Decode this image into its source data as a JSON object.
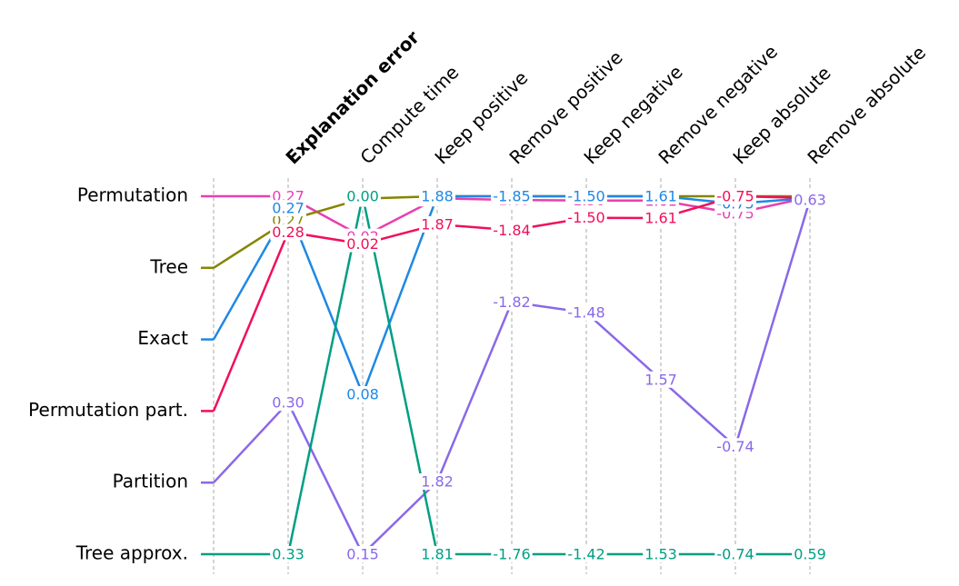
{
  "chart_data": {
    "type": "parallel",
    "metrics": [
      "Explanation error",
      "Compute time",
      "Keep positive",
      "Remove positive",
      "Keep negative",
      "Remove negative",
      "Keep absolute",
      "Remove absolute"
    ],
    "highlighted_metric": 0,
    "lower_is_better": [
      true,
      true,
      false,
      true,
      true,
      false,
      true,
      false
    ],
    "grid": true,
    "series": [
      {
        "name": "Permutation",
        "color": "#e83fb0",
        "values": [
          0.27,
          0.017,
          1.8796,
          -1.852,
          -1.502,
          1.611,
          -0.7497,
          0.6303
        ],
        "value_labels": [
          "0.27",
          "0.02",
          "1.88",
          "-1.85",
          "-1.50",
          "1.61",
          "-0.75",
          "0.63"
        ]
      },
      {
        "name": "Tree",
        "color": "#858500",
        "values": [
          0.274,
          0.001,
          1.88,
          -1.853,
          -1.503,
          1.612,
          -0.7504,
          0.6304
        ],
        "value_labels": [
          "0.27",
          "0.00",
          "1.88",
          "-1.85",
          "-1.50",
          "1.61",
          "-0.75",
          "0.63"
        ]
      },
      {
        "name": "Exact",
        "color": "#1e88e5",
        "values": [
          0.272,
          0.083,
          1.88,
          -1.853,
          -1.503,
          1.612,
          -0.7501,
          0.6302
        ],
        "value_labels": [
          "0.27",
          "0.08",
          "1.88",
          "-1.85",
          "-1.50",
          "1.61",
          "-0.75",
          "0.63"
        ]
      },
      {
        "name": "Permutation part.",
        "color": "#f0105a",
        "values": [
          0.276,
          0.02,
          1.8745,
          -1.844,
          -1.498,
          1.607,
          -0.7504,
          0.6302
        ],
        "value_labels": [
          "0.28",
          "0.02",
          "1.87",
          "-1.84",
          "-1.50",
          "1.61",
          "-0.75",
          "0.63"
        ]
      },
      {
        "name": "Partition",
        "color": "#8a68e8",
        "values": [
          0.3046,
          0.15,
          1.8242,
          -1.8249,
          -1.476,
          1.57,
          -0.7402,
          0.63
        ],
        "value_labels": [
          "0.30",
          "0.15",
          "1.82",
          "-1.82",
          "-1.48",
          "1.57",
          "-0.74",
          "0.63"
        ]
      },
      {
        "name": "Tree approx.",
        "color": "#009e83",
        "values": [
          0.33,
          0.0,
          1.81,
          -1.758,
          -1.42,
          1.53,
          -0.7358,
          0.59
        ],
        "value_labels": [
          "0.33",
          "0.00",
          "1.81",
          "-1.76",
          "-1.42",
          "1.53",
          "-0.74",
          "0.59"
        ]
      }
    ]
  }
}
